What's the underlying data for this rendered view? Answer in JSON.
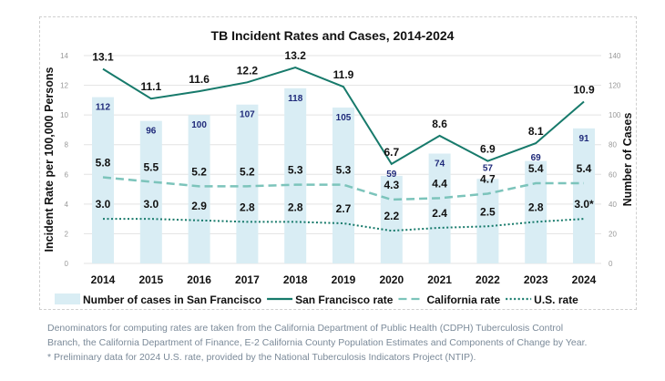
{
  "chart_data": {
    "type": "bar+line",
    "title": "TB Incident Rates and Cases, 2014-2024",
    "ylabel": "Incident Rate per 100,000 Persons",
    "y2label": "Number of Cases",
    "ylim": [
      0,
      14
    ],
    "y2lim": [
      0,
      140
    ],
    "yticks": [
      "0",
      "2",
      "4",
      "6",
      "8",
      "10",
      "12",
      "14"
    ],
    "y2ticks": [
      "0",
      "20",
      "40",
      "60",
      "80",
      "100",
      "120",
      "140"
    ],
    "categories": [
      "2014",
      "2015",
      "2016",
      "2017",
      "2018",
      "2019",
      "2020",
      "2021",
      "2022",
      "2023",
      "2024"
    ],
    "grid": true,
    "legend_placement": "bottom",
    "series": [
      {
        "name": "Number of cases in San Francisco",
        "type": "bar",
        "axis": "right",
        "color": "#d9edf4",
        "label_color": "#1f2a7a",
        "values": [
          112,
          96,
          100,
          107,
          118,
          105,
          59,
          74,
          57,
          69,
          91
        ],
        "labels": [
          "112",
          "96",
          "100",
          "107",
          "118",
          "105",
          "59",
          "74",
          "57",
          "69",
          "91"
        ]
      },
      {
        "name": "San Francisco rate",
        "type": "line",
        "style": "solid",
        "color": "#177a6b",
        "values": [
          13.1,
          11.1,
          11.6,
          12.2,
          13.2,
          11.9,
          6.7,
          8.6,
          6.9,
          8.1,
          10.9
        ],
        "labels": [
          "13.1",
          "11.1",
          "11.6",
          "12.2",
          "13.2",
          "11.9",
          "6.7",
          "8.6",
          "6.9",
          "8.1",
          "10.9"
        ]
      },
      {
        "name": "California rate",
        "type": "line",
        "style": "dashed",
        "color": "#7cc4bb",
        "values": [
          5.8,
          5.5,
          5.2,
          5.2,
          5.3,
          5.3,
          4.3,
          4.4,
          4.7,
          5.4,
          5.4
        ],
        "labels": [
          "5.8",
          "5.5",
          "5.2",
          "5.2",
          "5.3",
          "5.3",
          "4.3",
          "4.4",
          "4.7",
          "5.4",
          "5.4"
        ]
      },
      {
        "name": "U.S. rate",
        "type": "line",
        "style": "dotted",
        "color": "#177a6b",
        "values": [
          3.0,
          3.0,
          2.9,
          2.8,
          2.8,
          2.7,
          2.2,
          2.4,
          2.5,
          2.8,
          3.0
        ],
        "labels": [
          "3.0",
          "3.0",
          "2.9",
          "2.8",
          "2.8",
          "2.7",
          "2.2",
          "2.4",
          "2.5",
          "2.8",
          "3.0*"
        ]
      }
    ]
  },
  "footnotes": [
    "Denominators for computing rates are taken from the California Department of Public Health (CDPH) Tuberculosis Control",
    "Branch, the California Department of Finance, E-2 California County Population Estimates and Components of Change by Year.",
    "* Preliminary data for 2024 U.S. rate, provided by the National Tuberculosis Indicators Project (NTIP)."
  ]
}
